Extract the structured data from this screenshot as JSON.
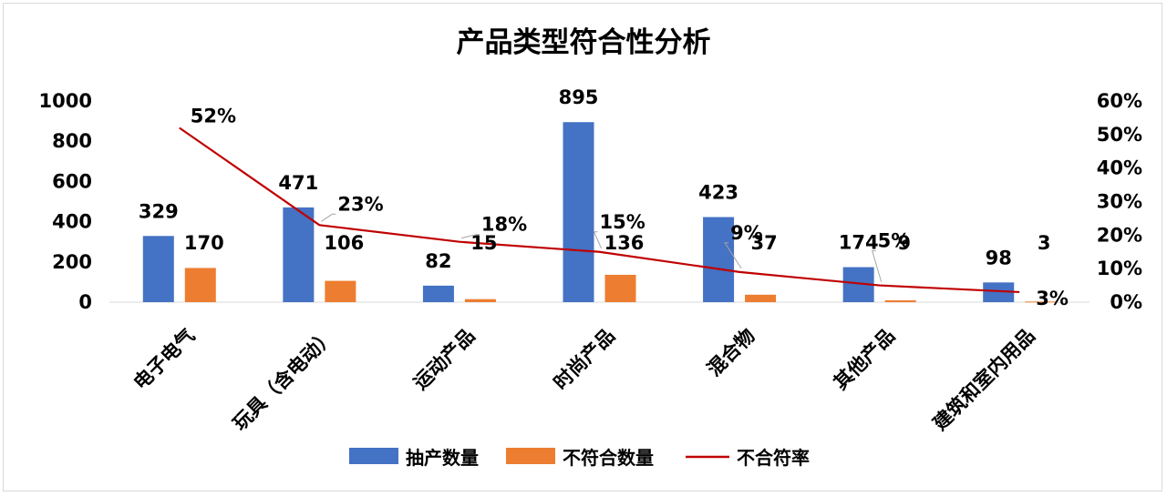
{
  "chart_data": {
    "type": "bar",
    "title": "产品类型符合性分析",
    "categories": [
      "电子电气",
      "玩具（含电动）",
      "运动产品",
      "时尚产品",
      "混合物",
      "其他产品",
      "建筑和室内用品"
    ],
    "series": [
      {
        "name": "抽产数量",
        "type": "bar",
        "axis": "left",
        "color": "#4472C4",
        "values": [
          329,
          471,
          82,
          895,
          423,
          174,
          98
        ],
        "labels": [
          "329",
          "471",
          "82",
          "895",
          "423",
          "174",
          "98"
        ]
      },
      {
        "name": "不符合数量",
        "type": "bar",
        "axis": "left",
        "color": "#ED7D31",
        "values": [
          170,
          106,
          15,
          136,
          37,
          9,
          3
        ],
        "labels": [
          "170",
          "106",
          "15",
          "136",
          "37",
          "9",
          "3"
        ]
      },
      {
        "name": "不合符率",
        "type": "line",
        "axis": "right",
        "color": "#C00000",
        "values": [
          0.52,
          0.23,
          0.18,
          0.15,
          0.09,
          0.05,
          0.03
        ],
        "labels": [
          "52%",
          "23%",
          "18%",
          "15%",
          "9%",
          "5%",
          "3%"
        ]
      }
    ],
    "y_left": {
      "min": 0,
      "max": 1000,
      "ticks": [
        "0",
        "200",
        "400",
        "600",
        "800",
        "1000"
      ]
    },
    "y_right": {
      "min": 0,
      "max": 0.6,
      "ticks": [
        "0%",
        "10%",
        "20%",
        "30%",
        "40%",
        "50%",
        "60%"
      ]
    },
    "grid": false,
    "legend_position": "bottom"
  }
}
